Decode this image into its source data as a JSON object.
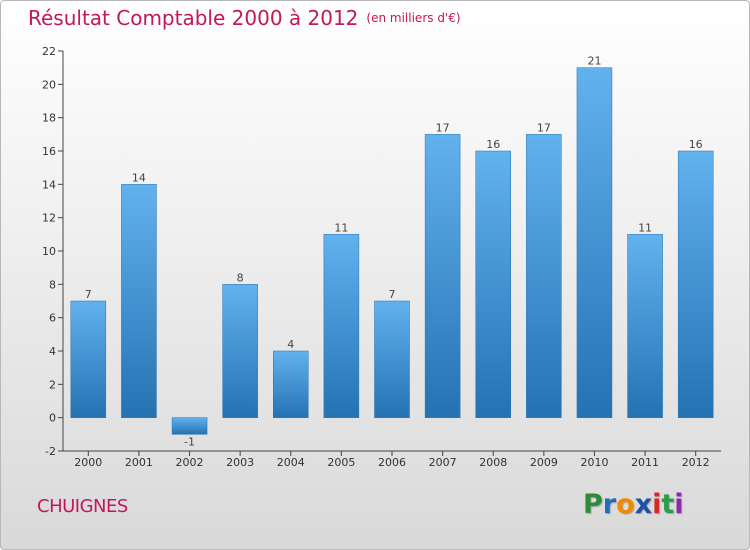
{
  "header": {
    "title": "Résultat Comptable 2000 à 2012",
    "subtitle": "(en milliers d'€)"
  },
  "footer": {
    "commune": "CHUIGNES",
    "logo_letters": [
      "P",
      "r",
      "o",
      "x",
      "i",
      "t",
      "i"
    ],
    "logo_colors": [
      "#2e8b3a",
      "#1f6fb8",
      "#f08a00",
      "#1f4fa8",
      "#d62828",
      "#2e9b4a",
      "#8a2aa8"
    ]
  },
  "colors": {
    "title": "#c2185b",
    "bar": "#3d8fd4",
    "bar_light": "#62b2ee",
    "bar_dark": "#2572b3",
    "axis": "#444444"
  },
  "chart_data": {
    "type": "bar",
    "title": "Résultat Comptable 2000 à 2012",
    "xlabel": "",
    "ylabel": "(en milliers d'€)",
    "categories": [
      "2000",
      "2001",
      "2002",
      "2003",
      "2004",
      "2005",
      "2006",
      "2007",
      "2008",
      "2009",
      "2010",
      "2011",
      "2012"
    ],
    "values": [
      7,
      14,
      -1,
      8,
      4,
      11,
      7,
      17,
      16,
      17,
      21,
      11,
      16
    ],
    "value_labels": [
      "7",
      "14",
      "-1",
      "8",
      "4",
      "11",
      "7",
      "17",
      "16",
      "17",
      "21",
      "11",
      "16"
    ],
    "ylim": [
      -2,
      22
    ],
    "yticks": [
      -2,
      0,
      2,
      4,
      6,
      8,
      10,
      12,
      14,
      16,
      18,
      20,
      22
    ],
    "grid": false,
    "legend": "none"
  }
}
